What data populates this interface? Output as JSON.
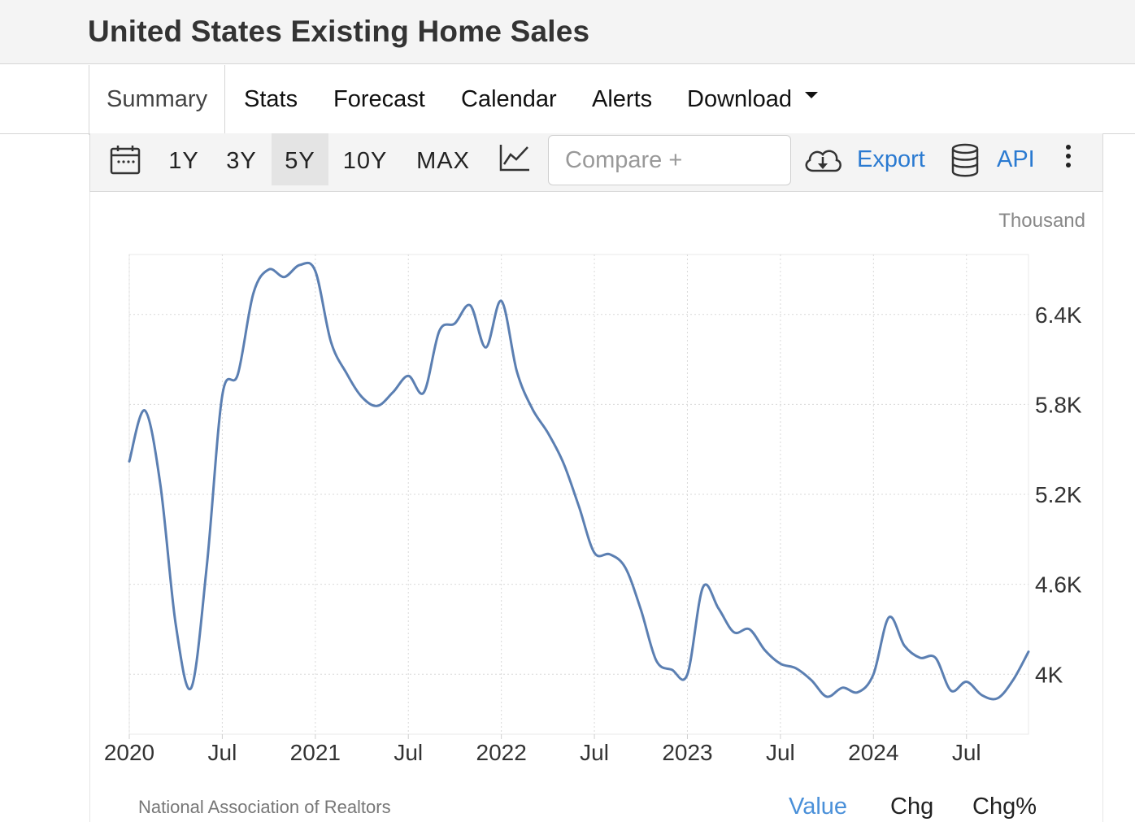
{
  "title": "United States Existing Home Sales",
  "tabs": [
    {
      "label": "Summary"
    },
    {
      "label": "Stats"
    },
    {
      "label": "Forecast"
    },
    {
      "label": "Calendar"
    },
    {
      "label": "Alerts"
    },
    {
      "label": "Download"
    }
  ],
  "toolbar": {
    "ranges": [
      "1Y",
      "3Y",
      "5Y",
      "10Y",
      "MAX"
    ],
    "selected_range": "5Y",
    "compare_placeholder": "Compare +",
    "export_label": "Export",
    "api_label": "API"
  },
  "footer": {
    "source": "National Association of Realtors",
    "view_tabs": [
      "Value",
      "Chg",
      "Chg%"
    ],
    "active_view": "Value"
  },
  "colors": {
    "line": "#5b7fb2",
    "link": "#2a7ad1",
    "active_view": "#4a90d9"
  },
  "chart_data": {
    "type": "line",
    "unit": "Thousand",
    "ylim": [
      3600,
      6800
    ],
    "yticks": [
      4000,
      4600,
      5200,
      5800,
      6400
    ],
    "ytick_labels": [
      "4K",
      "4.6K",
      "5.2K",
      "5.8K",
      "6.4K"
    ],
    "xlim": [
      "2020-01",
      "2024-11"
    ],
    "xticks": [
      "2020-01",
      "2020-07",
      "2021-01",
      "2021-07",
      "2022-01",
      "2022-07",
      "2023-01",
      "2023-07",
      "2024-01",
      "2024-07"
    ],
    "xtick_labels": [
      "2020",
      "Jul",
      "2021",
      "Jul",
      "2022",
      "Jul",
      "2023",
      "Jul",
      "2024",
      "Jul"
    ],
    "grid": true,
    "series": [
      {
        "x": [
          "2020-01",
          "2020-02",
          "2020-03",
          "2020-04",
          "2020-05",
          "2020-06",
          "2020-07",
          "2020-08",
          "2020-09",
          "2020-10",
          "2020-11",
          "2020-12",
          "2021-01",
          "2021-02",
          "2021-03",
          "2021-04",
          "2021-05",
          "2021-06",
          "2021-07",
          "2021-08",
          "2021-09",
          "2021-10",
          "2021-11",
          "2021-12",
          "2022-01",
          "2022-02",
          "2022-03",
          "2022-04",
          "2022-05",
          "2022-06",
          "2022-07",
          "2022-08",
          "2022-09",
          "2022-10",
          "2022-11",
          "2022-12",
          "2023-01",
          "2023-02",
          "2023-03",
          "2023-04",
          "2023-05",
          "2023-06",
          "2023-07",
          "2023-08",
          "2023-09",
          "2023-10",
          "2023-11",
          "2023-12",
          "2024-01",
          "2024-02",
          "2024-03",
          "2024-04",
          "2024-05",
          "2024-06",
          "2024-07",
          "2024-08",
          "2024-09",
          "2024-10",
          "2024-11"
        ],
        "values": [
          5420,
          5760,
          5270,
          4330,
          3910,
          4720,
          5860,
          6000,
          6540,
          6700,
          6650,
          6730,
          6690,
          6220,
          6010,
          5850,
          5790,
          5880,
          5990,
          5880,
          6290,
          6340,
          6460,
          6180,
          6490,
          6020,
          5770,
          5610,
          5410,
          5120,
          4810,
          4800,
          4710,
          4430,
          4090,
          4030,
          4000,
          4580,
          4440,
          4280,
          4300,
          4160,
          4070,
          4040,
          3960,
          3850,
          3910,
          3880,
          4000,
          4380,
          4190,
          4110,
          4110,
          3890,
          3950,
          3860,
          3840,
          3960,
          4150
        ]
      }
    ]
  }
}
